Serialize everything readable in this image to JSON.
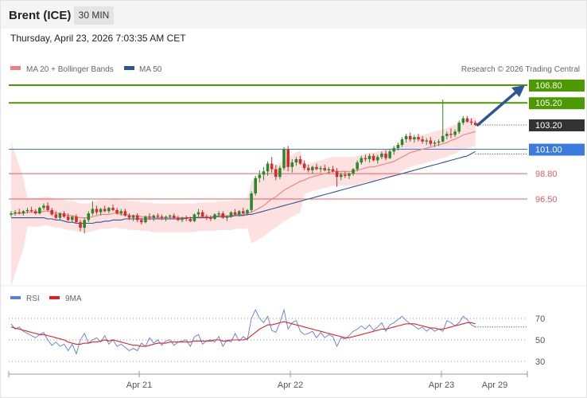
{
  "header": {
    "symbol": "Brent (ICE)",
    "timeframe": "30 MIN",
    "timestamp": "Thursday, April 23, 2026 7:03:35 AM CET"
  },
  "legend": {
    "ma20": "MA 20 + Bollinger Bands",
    "ma50": "MA 50",
    "credit": "Research © 2026 Trading Central",
    "rsi": "RSI",
    "rsi_ma": "9MA"
  },
  "colors": {
    "candle_up": "#2a8a2a",
    "candle_down": "#d92b2b",
    "ma20": "#f08080",
    "ma50": "#2f5597",
    "bollinger_fill": "#fde0e0",
    "resistance": "#4c9a00",
    "pivot": "#3b7be0",
    "support": "#e06060",
    "current": "#333333",
    "arrow": "#2f5597",
    "rsi": "#5b7fe0",
    "rsi_ma": "#e02020"
  },
  "chart_data": {
    "type": "candlestick",
    "price_levels": [
      {
        "label": "106.80",
        "value": 106.8,
        "kind": "resistance"
      },
      {
        "label": "105.20",
        "value": 105.2,
        "kind": "resistance"
      },
      {
        "label": "103.20",
        "value": 103.2,
        "kind": "current"
      },
      {
        "label": "101.00",
        "value": 101.0,
        "kind": "pivot"
      },
      {
        "label": "98.80",
        "value": 98.8,
        "kind": "support"
      },
      {
        "label": "96.50",
        "value": 96.5,
        "kind": "support"
      }
    ],
    "price_range": [
      88.0,
      109.5
    ],
    "projection": {
      "from": 103.2,
      "to": 106.8
    },
    "x_labels": [
      "Apr 21",
      "Apr 22",
      "Apr 23",
      "Apr 29"
    ],
    "candles": [
      [
        95.1,
        95.4,
        94.9,
        95.2
      ],
      [
        95.2,
        95.5,
        95.0,
        95.3
      ],
      [
        95.3,
        95.6,
        95.1,
        95.2
      ],
      [
        95.2,
        95.5,
        95.0,
        95.4
      ],
      [
        95.4,
        95.7,
        95.2,
        95.5
      ],
      [
        95.5,
        95.8,
        95.3,
        95.4
      ],
      [
        95.4,
        95.6,
        95.1,
        95.2
      ],
      [
        95.2,
        95.8,
        95.1,
        95.7
      ],
      [
        95.7,
        96.1,
        95.5,
        95.9
      ],
      [
        95.9,
        96.2,
        95.4,
        95.5
      ],
      [
        95.5,
        95.7,
        95.0,
        95.1
      ],
      [
        95.1,
        95.4,
        94.7,
        94.8
      ],
      [
        94.8,
        95.3,
        94.6,
        95.2
      ],
      [
        95.2,
        95.4,
        94.8,
        94.9
      ],
      [
        94.9,
        95.2,
        94.5,
        94.6
      ],
      [
        94.6,
        95.0,
        94.4,
        94.9
      ],
      [
        94.9,
        95.1,
        94.3,
        94.4
      ],
      [
        94.4,
        94.6,
        93.6,
        93.9
      ],
      [
        93.9,
        94.8,
        93.4,
        94.6
      ],
      [
        94.6,
        95.4,
        94.4,
        95.2
      ],
      [
        95.2,
        96.3,
        95.0,
        95.6
      ],
      [
        95.6,
        95.9,
        95.1,
        95.3
      ],
      [
        95.3,
        95.7,
        95.0,
        95.6
      ],
      [
        95.6,
        95.9,
        95.3,
        95.4
      ],
      [
        95.4,
        95.8,
        95.2,
        95.7
      ],
      [
        95.7,
        96.0,
        95.4,
        95.5
      ],
      [
        95.5,
        95.7,
        95.1,
        95.2
      ],
      [
        95.2,
        95.6,
        95.0,
        95.4
      ],
      [
        95.4,
        95.6,
        94.9,
        95.0
      ],
      [
        95.0,
        95.2,
        94.6,
        94.8
      ],
      [
        94.8,
        95.1,
        94.5,
        95.0
      ],
      [
        95.0,
        95.2,
        94.4,
        94.6
      ],
      [
        94.6,
        94.8,
        94.2,
        94.4
      ],
      [
        94.4,
        95.0,
        94.3,
        94.9
      ],
      [
        94.9,
        95.2,
        94.6,
        94.8
      ],
      [
        94.8,
        95.1,
        94.5,
        95.0
      ],
      [
        95.0,
        95.2,
        94.7,
        94.9
      ],
      [
        94.9,
        95.1,
        94.6,
        94.8
      ],
      [
        94.8,
        95.0,
        94.5,
        94.9
      ],
      [
        94.9,
        95.1,
        94.7,
        95.0
      ],
      [
        95.0,
        95.2,
        94.7,
        94.8
      ],
      [
        94.8,
        95.0,
        94.5,
        94.6
      ],
      [
        94.6,
        94.9,
        94.4,
        94.8
      ],
      [
        94.8,
        95.0,
        94.5,
        94.7
      ],
      [
        94.7,
        94.9,
        94.4,
        94.5
      ],
      [
        94.5,
        95.2,
        94.4,
        95.1
      ],
      [
        95.1,
        95.6,
        94.9,
        95.3
      ],
      [
        95.3,
        95.5,
        94.8,
        94.9
      ],
      [
        94.9,
        95.1,
        94.6,
        94.8
      ],
      [
        94.8,
        95.0,
        94.5,
        94.7
      ],
      [
        94.7,
        95.2,
        94.6,
        95.1
      ],
      [
        95.1,
        95.4,
        94.9,
        95.2
      ],
      [
        95.2,
        95.4,
        94.7,
        94.8
      ],
      [
        94.8,
        95.0,
        94.5,
        94.9
      ],
      [
        94.9,
        95.4,
        94.8,
        95.3
      ],
      [
        95.3,
        95.6,
        95.0,
        95.1
      ],
      [
        95.1,
        95.5,
        94.9,
        95.4
      ],
      [
        95.4,
        95.7,
        95.1,
        95.2
      ],
      [
        95.2,
        95.6,
        95.0,
        95.5
      ],
      [
        95.5,
        97.2,
        95.3,
        97.0
      ],
      [
        97.0,
        98.6,
        96.8,
        98.4
      ],
      [
        98.4,
        99.1,
        98.0,
        98.7
      ],
      [
        98.7,
        99.4,
        98.2,
        99.0
      ],
      [
        99.0,
        99.9,
        98.6,
        99.7
      ],
      [
        99.7,
        100.3,
        98.9,
        99.2
      ],
      [
        99.2,
        99.6,
        98.2,
        98.5
      ],
      [
        98.5,
        99.5,
        98.3,
        99.3
      ],
      [
        99.3,
        101.2,
        99.1,
        101.0
      ],
      [
        101.0,
        101.3,
        99.0,
        99.4
      ],
      [
        99.4,
        100.1,
        98.9,
        99.8
      ],
      [
        99.8,
        100.3,
        99.5,
        100.1
      ],
      [
        100.1,
        100.4,
        99.6,
        99.7
      ],
      [
        99.7,
        100.0,
        99.1,
        99.3
      ],
      [
        99.3,
        99.6,
        98.9,
        99.1
      ],
      [
        99.1,
        99.5,
        98.8,
        99.4
      ],
      [
        99.4,
        99.7,
        99.1,
        99.2
      ],
      [
        99.2,
        99.5,
        98.9,
        99.3
      ],
      [
        99.3,
        99.6,
        99.0,
        99.1
      ],
      [
        99.1,
        99.4,
        98.8,
        99.2
      ],
      [
        99.2,
        99.5,
        98.9,
        99.0
      ],
      [
        99.0,
        99.3,
        97.6,
        98.5
      ],
      [
        98.5,
        98.9,
        98.2,
        98.7
      ],
      [
        98.7,
        99.0,
        98.4,
        98.6
      ],
      [
        98.6,
        98.9,
        98.3,
        98.8
      ],
      [
        98.8,
        99.3,
        98.6,
        99.2
      ],
      [
        99.2,
        100.0,
        99.0,
        99.8
      ],
      [
        99.8,
        100.4,
        99.6,
        100.2
      ],
      [
        100.2,
        100.5,
        99.9,
        100.1
      ],
      [
        100.1,
        100.6,
        99.8,
        100.4
      ],
      [
        100.4,
        100.6,
        99.9,
        100.0
      ],
      [
        100.0,
        100.5,
        99.7,
        100.3
      ],
      [
        100.3,
        100.8,
        100.1,
        100.6
      ],
      [
        100.6,
        100.9,
        100.0,
        100.2
      ],
      [
        100.2,
        101.0,
        100.1,
        100.8
      ],
      [
        100.8,
        101.3,
        100.5,
        101.1
      ],
      [
        101.1,
        101.6,
        100.9,
        101.4
      ],
      [
        101.4,
        102.1,
        101.2,
        101.9
      ],
      [
        101.9,
        102.4,
        101.6,
        102.2
      ],
      [
        102.2,
        102.5,
        101.7,
        101.9
      ],
      [
        101.9,
        102.3,
        101.6,
        102.1
      ],
      [
        102.1,
        102.4,
        101.7,
        101.9
      ],
      [
        101.9,
        102.2,
        101.5,
        101.7
      ],
      [
        101.7,
        102.0,
        101.4,
        101.8
      ],
      [
        101.8,
        102.1,
        101.3,
        101.5
      ],
      [
        101.5,
        101.8,
        101.2,
        101.6
      ],
      [
        101.6,
        101.9,
        101.3,
        101.7
      ],
      [
        101.7,
        105.5,
        101.6,
        102.2
      ],
      [
        102.2,
        102.6,
        101.9,
        102.4
      ],
      [
        102.4,
        102.9,
        102.0,
        102.3
      ],
      [
        102.3,
        102.8,
        102.1,
        102.6
      ],
      [
        102.6,
        103.6,
        102.4,
        103.4
      ],
      [
        103.4,
        104.0,
        103.2,
        103.8
      ],
      [
        103.8,
        104.0,
        103.4,
        103.5
      ],
      [
        103.5,
        103.8,
        103.2,
        103.4
      ],
      [
        103.4,
        103.6,
        103.1,
        103.2
      ]
    ],
    "ma20": [
      95.1,
      95.2,
      95.2,
      95.2,
      95.3,
      95.3,
      95.3,
      95.3,
      95.4,
      95.4,
      95.3,
      95.2,
      95.2,
      95.1,
      95.0,
      95.0,
      94.9,
      94.8,
      94.8,
      94.8,
      94.9,
      95.0,
      95.1,
      95.1,
      95.1,
      95.2,
      95.2,
      95.1,
      95.1,
      95.0,
      95.0,
      95.0,
      94.9,
      94.9,
      94.9,
      94.8,
      94.8,
      94.8,
      94.8,
      94.8,
      94.8,
      94.8,
      94.8,
      94.8,
      94.8,
      94.8,
      94.9,
      94.9,
      94.9,
      94.9,
      94.9,
      95.0,
      95.0,
      95.0,
      95.0,
      95.1,
      95.1,
      95.1,
      95.2,
      95.3,
      95.5,
      95.7,
      95.9,
      96.2,
      96.5,
      96.7,
      97.0,
      97.3,
      97.5,
      97.7,
      97.9,
      98.1,
      98.2,
      98.4,
      98.5,
      98.6,
      98.7,
      98.8,
      98.9,
      99.0,
      99.0,
      99.0,
      99.0,
      99.0,
      99.0,
      99.1,
      99.2,
      99.3,
      99.4,
      99.4,
      99.5,
      99.6,
      99.7,
      99.8,
      99.9,
      100.1,
      100.3,
      100.5,
      100.7,
      100.8,
      100.9,
      101.0,
      101.1,
      101.2,
      101.3,
      101.4,
      101.5,
      101.6,
      101.8,
      101.9,
      102.1,
      102.3,
      102.4,
      102.5,
      102.6
    ],
    "ma50": [
      94.8,
      94.8,
      94.8,
      94.8,
      94.8,
      94.8,
      94.8,
      94.8,
      94.8,
      94.7,
      94.7,
      94.6,
      94.6,
      94.5,
      94.4,
      94.4,
      94.3,
      94.3,
      94.3,
      94.3,
      94.3,
      94.4,
      94.4,
      94.5,
      94.5,
      94.6,
      94.6,
      94.6,
      94.7,
      94.7,
      94.7,
      94.7,
      94.7,
      94.7,
      94.7,
      94.7,
      94.7,
      94.7,
      94.7,
      94.7,
      94.7,
      94.7,
      94.7,
      94.8,
      94.8,
      94.8,
      94.8,
      94.8,
      94.8,
      94.8,
      94.9,
      94.9,
      94.9,
      94.9,
      94.9,
      95.0,
      95.0,
      95.0,
      95.1,
      95.1,
      95.2,
      95.3,
      95.4,
      95.5,
      95.6,
      95.7,
      95.8,
      95.9,
      96.0,
      96.1,
      96.2,
      96.3,
      96.4,
      96.5,
      96.6,
      96.7,
      96.8,
      96.9,
      97.0,
      97.1,
      97.2,
      97.3,
      97.4,
      97.5,
      97.6,
      97.7,
      97.8,
      97.9,
      98.0,
      98.1,
      98.2,
      98.3,
      98.4,
      98.5,
      98.6,
      98.7,
      98.8,
      98.9,
      99.0,
      99.1,
      99.2,
      99.3,
      99.4,
      99.5,
      99.6,
      99.7,
      99.8,
      99.9,
      100.0,
      100.1,
      100.2,
      100.3,
      100.4,
      100.6,
      100.8
    ],
    "rsi": {
      "ticks": [
        "70",
        "50",
        "30"
      ],
      "range": [
        20,
        80
      ],
      "rsi_values": [
        65,
        60,
        62,
        58,
        56,
        54,
        52,
        55,
        57,
        50,
        45,
        48,
        44,
        46,
        40,
        46,
        37,
        50,
        56,
        47,
        50,
        52,
        48,
        54,
        46,
        50,
        44,
        46,
        43,
        40,
        42,
        40,
        47,
        44,
        52,
        47,
        50,
        45,
        49,
        50,
        45,
        48,
        49,
        50,
        44,
        53,
        55,
        46,
        49,
        50,
        48,
        53,
        44,
        50,
        48,
        56,
        49,
        53,
        50,
        70,
        78,
        70,
        66,
        72,
        59,
        57,
        66,
        78,
        60,
        66,
        68,
        58,
        55,
        56,
        58,
        52,
        57,
        52,
        55,
        53,
        44,
        52,
        51,
        54,
        58,
        60,
        63,
        60,
        64,
        59,
        62,
        66,
        58,
        64,
        66,
        69,
        72,
        68,
        65,
        63,
        60,
        62,
        58,
        61,
        58,
        60,
        58,
        68,
        66,
        63,
        66,
        72,
        69,
        64,
        62
      ],
      "ma_values": [
        62,
        61,
        60,
        59,
        58,
        57,
        56,
        55,
        55,
        54,
        53,
        52,
        51,
        50,
        48,
        47,
        46,
        46,
        47,
        47,
        48,
        48,
        49,
        50,
        49,
        50,
        49,
        48,
        47,
        46,
        45,
        45,
        44,
        44,
        45,
        46,
        47,
        47,
        47,
        48,
        48,
        48,
        48,
        48,
        48,
        49,
        49,
        49,
        49,
        49,
        50,
        50,
        49,
        49,
        50,
        50,
        50,
        50,
        51,
        54,
        57,
        60,
        62,
        64,
        64,
        65,
        66,
        67,
        66,
        65,
        64,
        63,
        62,
        61,
        60,
        59,
        58,
        57,
        56,
        55,
        54,
        53,
        52,
        52,
        53,
        54,
        55,
        56,
        57,
        58,
        59,
        60,
        60,
        61,
        62,
        63,
        64,
        65,
        65,
        65,
        64,
        63,
        62,
        61,
        61,
        60,
        60,
        61,
        62,
        63,
        64,
        65,
        66,
        66,
        65
      ]
    }
  }
}
